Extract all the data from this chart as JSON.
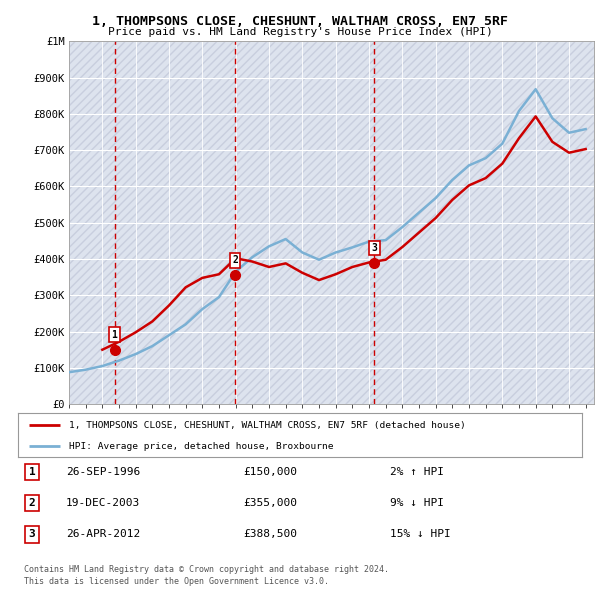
{
  "title": "1, THOMPSONS CLOSE, CHESHUNT, WALTHAM CROSS, EN7 5RF",
  "subtitle": "Price paid vs. HM Land Registry's House Price Index (HPI)",
  "ylim": [
    0,
    1000000
  ],
  "yticks": [
    0,
    100000,
    200000,
    300000,
    400000,
    500000,
    600000,
    700000,
    800000,
    900000,
    1000000
  ],
  "ytick_labels": [
    "£0",
    "£100K",
    "£200K",
    "£300K",
    "£400K",
    "£500K",
    "£600K",
    "£700K",
    "£800K",
    "£900K",
    "£1M"
  ],
  "sale_prices": [
    150000,
    355000,
    388500
  ],
  "sale_labels": [
    "1",
    "2",
    "3"
  ],
  "sale_pct": [
    "2% ↑ HPI",
    "9% ↓ HPI",
    "15% ↓ HPI"
  ],
  "sale_date_strs": [
    "26-SEP-1996",
    "19-DEC-2003",
    "26-APR-2012"
  ],
  "sale_price_strs": [
    "£150,000",
    "£355,000",
    "£388,500"
  ],
  "line_color_red": "#cc0000",
  "line_color_blue": "#7ab0d4",
  "bg_color": "#ffffff",
  "plot_bg_color": "#dde3ee",
  "legend_line1": "1, THOMPSONS CLOSE, CHESHUNT, WALTHAM CROSS, EN7 5RF (detached house)",
  "legend_line2": "HPI: Average price, detached house, Broxbourne",
  "footer1": "Contains HM Land Registry data © Crown copyright and database right 2024.",
  "footer2": "This data is licensed under the Open Government Licence v3.0.",
  "hpi_years": [
    1994,
    1995,
    1996,
    1997,
    1998,
    1999,
    2000,
    2001,
    2002,
    2003,
    2004,
    2005,
    2006,
    2007,
    2008,
    2009,
    2010,
    2011,
    2012,
    2013,
    2014,
    2015,
    2016,
    2017,
    2018,
    2019,
    2020,
    2021,
    2022,
    2023,
    2024,
    2025
  ],
  "hpi_values": [
    88000,
    95000,
    105000,
    120000,
    138000,
    160000,
    190000,
    220000,
    262000,
    295000,
    365000,
    405000,
    435000,
    455000,
    418000,
    398000,
    418000,
    432000,
    448000,
    452000,
    488000,
    528000,
    568000,
    618000,
    658000,
    678000,
    718000,
    808000,
    868000,
    788000,
    748000,
    758000
  ],
  "price_years": [
    1996,
    1997,
    1998,
    1999,
    2000,
    2001,
    2002,
    2003,
    2004,
    2005,
    2006,
    2007,
    2008,
    2009,
    2010,
    2011,
    2012,
    2013,
    2014,
    2015,
    2016,
    2017,
    2018,
    2019,
    2020,
    2021,
    2022,
    2023,
    2024,
    2025
  ],
  "price_values": [
    150000,
    172000,
    198000,
    228000,
    272000,
    322000,
    348000,
    358000,
    402000,
    393000,
    378000,
    388000,
    362000,
    342000,
    358000,
    378000,
    390500,
    398000,
    433000,
    473000,
    513000,
    563000,
    603000,
    623000,
    663000,
    733000,
    793000,
    723000,
    693000,
    703000
  ],
  "vline_dates": [
    1996.73,
    2003.96,
    2012.32
  ],
  "vline_color": "#cc0000",
  "xmin": 1994,
  "xmax": 2025.5
}
